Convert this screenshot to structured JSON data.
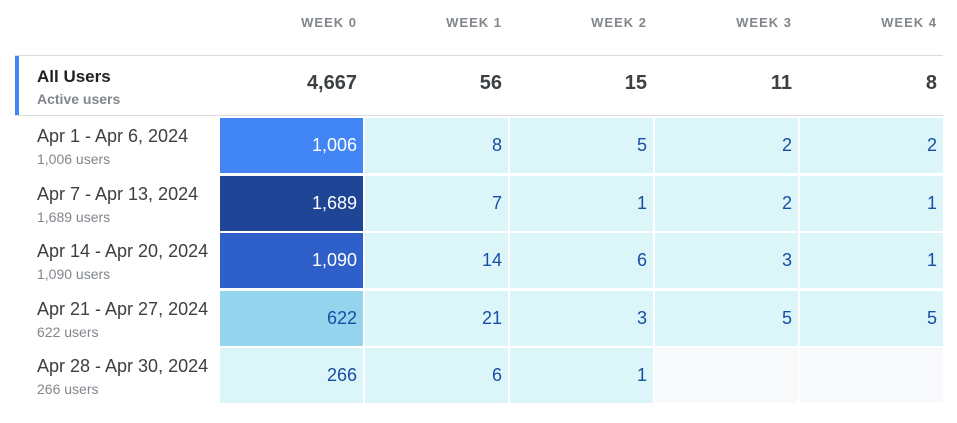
{
  "colors": {
    "accent": "#4285f4",
    "level_highest": "#1e4596",
    "level_high": "#2f5fc8",
    "level_mid": "#4285f4",
    "level_low": "#94d4ec",
    "level_min": "#dcf5f8",
    "empty": "#f8f9fa",
    "text_dark_cell": "#ffffff",
    "text_light_cell": "#174ea6"
  },
  "columns": [
    "WEEK 0",
    "WEEK 1",
    "WEEK 2",
    "WEEK 3",
    "WEEK 4"
  ],
  "totals": {
    "title": "All Users",
    "subtitle": "Active users",
    "values": [
      "4,667",
      "56",
      "15",
      "11",
      "8"
    ]
  },
  "cohorts": [
    {
      "label": "Apr 1 - Apr 6, 2024",
      "users": "1,006 users",
      "values": [
        "1,006",
        "8",
        "5",
        "2",
        "2"
      ],
      "levels": [
        "mid",
        "min",
        "min",
        "min",
        "min"
      ]
    },
    {
      "label": "Apr 7 - Apr 13, 2024",
      "users": "1,689 users",
      "values": [
        "1,689",
        "7",
        "1",
        "2",
        "1"
      ],
      "levels": [
        "highest",
        "min",
        "min",
        "min",
        "min"
      ]
    },
    {
      "label": "Apr 14 - Apr 20, 2024",
      "users": "1,090 users",
      "values": [
        "1,090",
        "14",
        "6",
        "3",
        "1"
      ],
      "levels": [
        "high",
        "min",
        "min",
        "min",
        "min"
      ]
    },
    {
      "label": "Apr 21 - Apr 27, 2024",
      "users": "622 users",
      "values": [
        "622",
        "21",
        "3",
        "5",
        "5"
      ],
      "levels": [
        "low",
        "min",
        "min",
        "min",
        "min"
      ]
    },
    {
      "label": "Apr 28 - Apr 30, 2024",
      "users": "266 users",
      "values": [
        "266",
        "6",
        "1",
        null,
        null
      ],
      "levels": [
        "min",
        "min",
        "min",
        "empty",
        "empty"
      ]
    }
  ]
}
